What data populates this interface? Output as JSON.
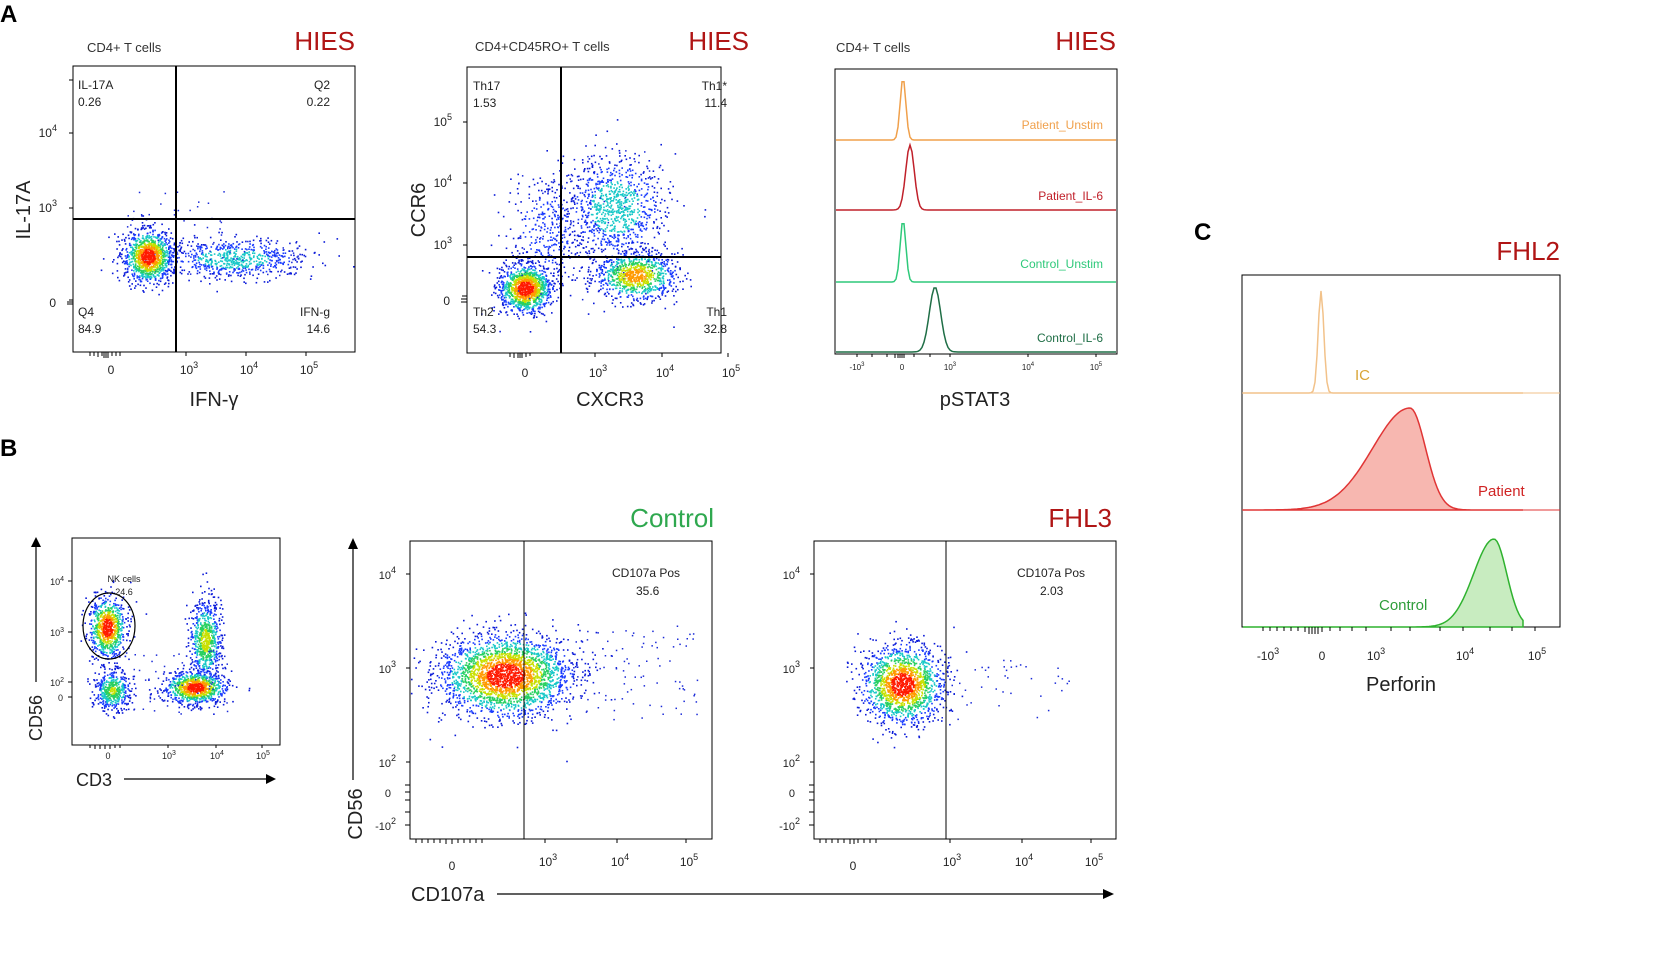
{
  "panel_letters": {
    "a": "A",
    "b": "B",
    "c": "C"
  },
  "colors": {
    "red_title": "#b01515",
    "green_title": "#2fa84f",
    "patient_unstim": "#f0a04b",
    "patient_il6": "#c0202a",
    "control_unstim": "#2ec97a",
    "control_il6": "#1f6e46",
    "ic": "#f2c28a",
    "patient_fill": "#f7b7b0",
    "patient_line": "#e03535",
    "control_fill": "#c8ecc0",
    "control_line": "#2fb22f"
  },
  "chart_data": [
    {
      "id": "il17a_ifng",
      "type": "scatter",
      "subtitle": "CD4+ T cells",
      "title": "HIES",
      "xlabel": "IFN-γ",
      "ylabel": "IL-17A",
      "x_ticks": [
        {
          "label": "0",
          "exp": ""
        },
        {
          "label": "10",
          "exp": "3"
        },
        {
          "label": "10",
          "exp": "4"
        },
        {
          "label": "10",
          "exp": "5"
        }
      ],
      "y_ticks": [
        {
          "label": "0",
          "exp": ""
        },
        {
          "label": "10",
          "exp": "3"
        },
        {
          "label": "10",
          "exp": "4"
        }
      ],
      "quadrants": [
        {
          "name": "IL-17A",
          "value": "0.26"
        },
        {
          "name": "Q2",
          "value": "0.22"
        },
        {
          "name": "Q4",
          "value": "84.9"
        },
        {
          "name": "IFN-g",
          "value": "14.6"
        }
      ]
    },
    {
      "id": "ccr6_cxcr3",
      "type": "scatter",
      "subtitle": "CD4+CD45RO+ T cells",
      "title": "HIES",
      "xlabel": "CXCR3",
      "ylabel": "CCR6",
      "x_ticks": [
        {
          "label": "0",
          "exp": ""
        },
        {
          "label": "10",
          "exp": "3"
        },
        {
          "label": "10",
          "exp": "4"
        },
        {
          "label": "10",
          "exp": "5"
        }
      ],
      "y_ticks": [
        {
          "label": "0",
          "exp": ""
        },
        {
          "label": "10",
          "exp": "3"
        },
        {
          "label": "10",
          "exp": "4"
        },
        {
          "label": "10",
          "exp": "5"
        }
      ],
      "quadrants": [
        {
          "name": "Th17",
          "value": "1.53"
        },
        {
          "name": "Th1*",
          "value": "11.4"
        },
        {
          "name": "Th2",
          "value": "54.3"
        },
        {
          "name": "Th1",
          "value": "32.8"
        }
      ]
    },
    {
      "id": "pstat3_histogram",
      "type": "area",
      "subtitle": "CD4+ T cells",
      "title": "HIES",
      "xlabel": "pSTAT3",
      "x_ticks": [
        {
          "label": "-10",
          "exp": "3"
        },
        {
          "label": "0",
          "exp": ""
        },
        {
          "label": "10",
          "exp": "3"
        },
        {
          "label": "10",
          "exp": "4"
        },
        {
          "label": "10",
          "exp": "5"
        }
      ],
      "series": [
        {
          "name": "Patient_Unstim",
          "peak_log": 1.5
        },
        {
          "name": "Patient_IL-6",
          "peak_log": 1.9
        },
        {
          "name": "Control_Unstim",
          "peak_log": 1.5
        },
        {
          "name": "Control_IL-6",
          "peak_log": 2.6
        }
      ]
    },
    {
      "id": "cd56_cd3",
      "type": "scatter",
      "xlabel": "CD3",
      "ylabel": "CD56",
      "gate": {
        "name": "NK cells",
        "value": "24.6"
      },
      "x_ticks": [
        {
          "label": "0",
          "exp": ""
        },
        {
          "label": "10",
          "exp": "3"
        },
        {
          "label": "10",
          "exp": "4"
        },
        {
          "label": "10",
          "exp": "5"
        }
      ],
      "y_ticks": [
        {
          "label": "0",
          "exp": ""
        },
        {
          "label": "10",
          "exp": "2"
        },
        {
          "label": "10",
          "exp": "3"
        },
        {
          "label": "10",
          "exp": "4"
        }
      ]
    },
    {
      "id": "cd107a_control",
      "type": "scatter",
      "title": "Control",
      "gate": {
        "name": "CD107a Pos",
        "value": "35.6"
      },
      "x_ticks": [
        {
          "label": "0",
          "exp": ""
        },
        {
          "label": "10",
          "exp": "3"
        },
        {
          "label": "10",
          "exp": "4"
        },
        {
          "label": "10",
          "exp": "5"
        }
      ],
      "y_ticks": [
        {
          "label": "-10",
          "exp": "2"
        },
        {
          "label": "0",
          "exp": ""
        },
        {
          "label": "10",
          "exp": "2"
        },
        {
          "label": "10",
          "exp": "3"
        },
        {
          "label": "10",
          "exp": "4"
        }
      ]
    },
    {
      "id": "cd107a_fhl3",
      "type": "scatter",
      "title": "FHL3",
      "gate": {
        "name": "CD107a Pos",
        "value": "2.03"
      },
      "x_ticks": [
        {
          "label": "0",
          "exp": ""
        },
        {
          "label": "10",
          "exp": "3"
        },
        {
          "label": "10",
          "exp": "4"
        },
        {
          "label": "10",
          "exp": "5"
        }
      ],
      "y_ticks": [
        {
          "label": "-10",
          "exp": "2"
        },
        {
          "label": "0",
          "exp": ""
        },
        {
          "label": "10",
          "exp": "2"
        },
        {
          "label": "10",
          "exp": "3"
        },
        {
          "label": "10",
          "exp": "4"
        }
      ]
    },
    {
      "id": "perforin_histogram",
      "type": "area",
      "title": "FHL2",
      "xlabel": "Perforin",
      "x_ticks": [
        {
          "label": "-10",
          "exp": "3"
        },
        {
          "label": "0",
          "exp": ""
        },
        {
          "label": "10",
          "exp": "3"
        },
        {
          "label": "10",
          "exp": "4"
        },
        {
          "label": "10",
          "exp": "5"
        }
      ],
      "series": [
        {
          "name": "IC",
          "peak_log": 1.5
        },
        {
          "name": "Patient",
          "peak_log": 3.4
        },
        {
          "name": "Control",
          "peak_log": 4.4
        }
      ]
    }
  ],
  "shared_axes": {
    "cd107a_xlabel": "CD107a",
    "cd56_ylabel": "CD56"
  }
}
